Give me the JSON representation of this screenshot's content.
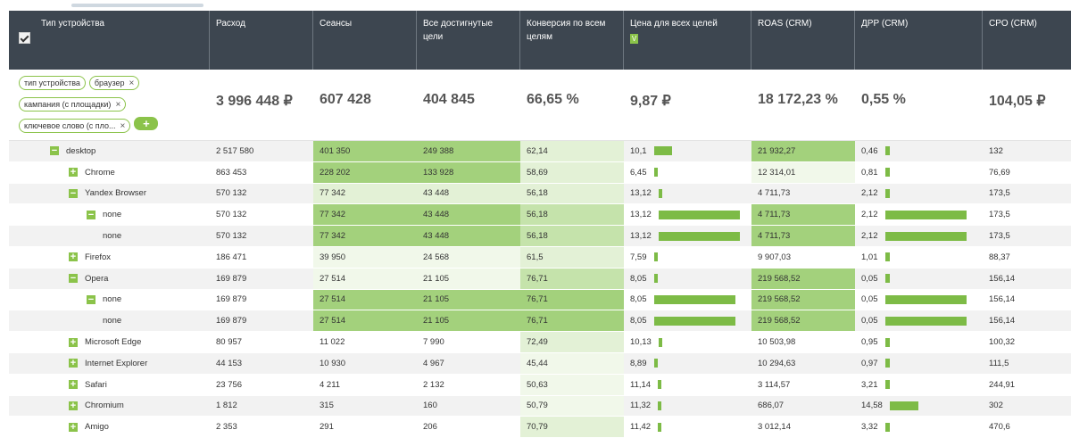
{
  "columns": [
    {
      "key": "device",
      "label": "Тип устройства",
      "w": 225
    },
    {
      "key": "spend",
      "label": "Расход",
      "w": 116
    },
    {
      "key": "sessions",
      "label": "Сеансы",
      "w": 116
    },
    {
      "key": "goals",
      "label": "Все достигнутые цели",
      "w": 116
    },
    {
      "key": "conv",
      "label": "Конверсия по всем целям",
      "w": 116
    },
    {
      "key": "price",
      "label": "Цена для всех целей",
      "w": 143
    },
    {
      "key": "roas",
      "label": "ROAS (CRM)",
      "w": 116
    },
    {
      "key": "drr",
      "label": "ДРР (CRM)",
      "w": 143
    },
    {
      "key": "cpo",
      "label": "CPO (CRM)",
      "w": 99
    }
  ],
  "price_badge": "V",
  "filters": [
    {
      "label": "тип устройства",
      "removable": false
    },
    {
      "label": "браузер",
      "removable": true
    },
    {
      "label": "кампания (с площадки)",
      "removable": true
    },
    {
      "label": "ключевое слово (с пло...",
      "removable": true
    }
  ],
  "add_label": "+",
  "totals": {
    "spend": "3 996 448 ₽",
    "sessions": "607 428",
    "goals": "404 845",
    "conv": "66,65 %",
    "price": "9,87 ₽",
    "roas": "18 172,23 %",
    "drr": "0,55 %",
    "cpo": "104,05 ₽"
  },
  "rows": [
    {
      "level": 1,
      "toggle": "−",
      "name": "desktop",
      "spend": "2 517 580",
      "sessions": "401 350",
      "goals": "249 388",
      "conv": "62,14",
      "price": "10,1",
      "price_bar": 0.22,
      "roas": "21 932,27",
      "drr": "0,46",
      "drr_bar": 0.05,
      "cpo": "132",
      "sh": [
        "",
        "g1",
        "g1",
        "g3",
        "",
        "g1",
        "",
        ""
      ]
    },
    {
      "level": 2,
      "toggle": "+",
      "name": "Chrome",
      "spend": "863 453",
      "sessions": "228 202",
      "goals": "133 928",
      "conv": "58,69",
      "price": "6,45",
      "price_bar": 0.04,
      "roas": "12 314,01",
      "drr": "0,81",
      "drr_bar": 0.05,
      "cpo": "76,69",
      "sh": [
        "",
        "g1",
        "g1",
        "g3",
        "",
        "g4",
        "",
        ""
      ]
    },
    {
      "level": 2,
      "toggle": "−",
      "name": "Yandex Browser",
      "spend": "570 132",
      "sessions": "77 342",
      "goals": "43 448",
      "conv": "56,18",
      "price": "13,12",
      "price_bar": 0.04,
      "roas": "4 711,73",
      "drr": "2,12",
      "drr_bar": 0.05,
      "cpo": "173,5",
      "sh": [
        "",
        "g3",
        "g3",
        "g3",
        "",
        "",
        "",
        ""
      ]
    },
    {
      "level": 3,
      "toggle": "−",
      "name": "none",
      "spend": "570 132",
      "sessions": "77 342",
      "goals": "43 448",
      "conv": "56,18",
      "price": "13,12",
      "price_bar": 0.99,
      "roas": "4 711,73",
      "drr": "2,12",
      "drr_bar": 0.99,
      "cpo": "173,5",
      "sh": [
        "",
        "g1",
        "g1",
        "g2",
        "",
        "g1",
        "",
        ""
      ]
    },
    {
      "level": 4,
      "toggle": "",
      "name": "none",
      "spend": "570 132",
      "sessions": "77 342",
      "goals": "43 448",
      "conv": "56,18",
      "price": "13,12",
      "price_bar": 0.99,
      "roas": "4 711,73",
      "drr": "2,12",
      "drr_bar": 0.99,
      "cpo": "173,5",
      "sh": [
        "",
        "g1",
        "g1",
        "g2",
        "",
        "g1",
        "",
        ""
      ]
    },
    {
      "level": 2,
      "toggle": "+",
      "name": "Firefox",
      "spend": "186 471",
      "sessions": "39 950",
      "goals": "24 568",
      "conv": "61,5",
      "price": "7,59",
      "price_bar": 0.04,
      "roas": "9 907,03",
      "drr": "1,01",
      "drr_bar": 0.05,
      "cpo": "88,37",
      "sh": [
        "",
        "g4",
        "g4",
        "g3",
        "",
        "",
        "",
        ""
      ]
    },
    {
      "level": 2,
      "toggle": "−",
      "name": "Opera",
      "spend": "169 879",
      "sessions": "27 514",
      "goals": "21 105",
      "conv": "76,71",
      "price": "8,05",
      "price_bar": 0.04,
      "roas": "219 568,52",
      "drr": "0,05",
      "drr_bar": 0.05,
      "cpo": "156,14",
      "sh": [
        "",
        "g4",
        "g4",
        "g2",
        "",
        "g1",
        "",
        ""
      ]
    },
    {
      "level": 3,
      "toggle": "−",
      "name": "none",
      "spend": "169 879",
      "sessions": "27 514",
      "goals": "21 105",
      "conv": "76,71",
      "price": "8,05",
      "price_bar": 0.99,
      "roas": "219 568,52",
      "drr": "0,05",
      "drr_bar": 0.99,
      "cpo": "156,14",
      "sh": [
        "",
        "g1",
        "g1",
        "g1",
        "",
        "g1",
        "",
        ""
      ]
    },
    {
      "level": 4,
      "toggle": "",
      "name": "none",
      "spend": "169 879",
      "sessions": "27 514",
      "goals": "21 105",
      "conv": "76,71",
      "price": "8,05",
      "price_bar": 0.99,
      "roas": "219 568,52",
      "drr": "0,05",
      "drr_bar": 0.99,
      "cpo": "156,14",
      "sh": [
        "",
        "g1",
        "g1",
        "g1",
        "",
        "g1",
        "",
        ""
      ]
    },
    {
      "level": 2,
      "toggle": "+",
      "name": "Microsoft Edge",
      "spend": "80 957",
      "sessions": "11 022",
      "goals": "7 990",
      "conv": "72,49",
      "price": "10,13",
      "price_bar": 0.04,
      "roas": "10 503,98",
      "drr": "0,95",
      "drr_bar": 0.05,
      "cpo": "100,32",
      "sh": [
        "",
        "",
        "",
        "g3",
        "",
        "",
        "",
        ""
      ]
    },
    {
      "level": 2,
      "toggle": "+",
      "name": "Internet Explorer",
      "spend": "44 153",
      "sessions": "10 930",
      "goals": "4 967",
      "conv": "45,44",
      "price": "8,89",
      "price_bar": 0.04,
      "roas": "10 294,63",
      "drr": "0,97",
      "drr_bar": 0.05,
      "cpo": "111,5",
      "sh": [
        "",
        "",
        "",
        "g4",
        "",
        "",
        "",
        ""
      ]
    },
    {
      "level": 2,
      "toggle": "+",
      "name": "Safari",
      "spend": "23 756",
      "sessions": "4 211",
      "goals": "2 132",
      "conv": "50,63",
      "price": "11,14",
      "price_bar": 0.04,
      "roas": "3 114,57",
      "drr": "3,21",
      "drr_bar": 0.05,
      "cpo": "244,91",
      "sh": [
        "",
        "",
        "",
        "g4",
        "",
        "",
        "",
        ""
      ]
    },
    {
      "level": 2,
      "toggle": "+",
      "name": "Chromium",
      "spend": "1 812",
      "sessions": "315",
      "goals": "160",
      "conv": "50,79",
      "price": "11,32",
      "price_bar": 0.04,
      "roas": "686,07",
      "drr": "14,58",
      "drr_bar": 0.35,
      "cpo": "302",
      "sh": [
        "",
        "",
        "",
        "g4",
        "",
        "",
        "",
        ""
      ]
    },
    {
      "level": 2,
      "toggle": "+",
      "name": "Amigo",
      "spend": "2 353",
      "sessions": "291",
      "goals": "206",
      "conv": "70,79",
      "price": "11,42",
      "price_bar": 0.04,
      "roas": "3 012,14",
      "drr": "3,32",
      "drr_bar": 0.05,
      "cpo": "470,6",
      "sh": [
        "",
        "",
        "",
        "g3",
        "",
        "",
        "",
        ""
      ]
    }
  ]
}
